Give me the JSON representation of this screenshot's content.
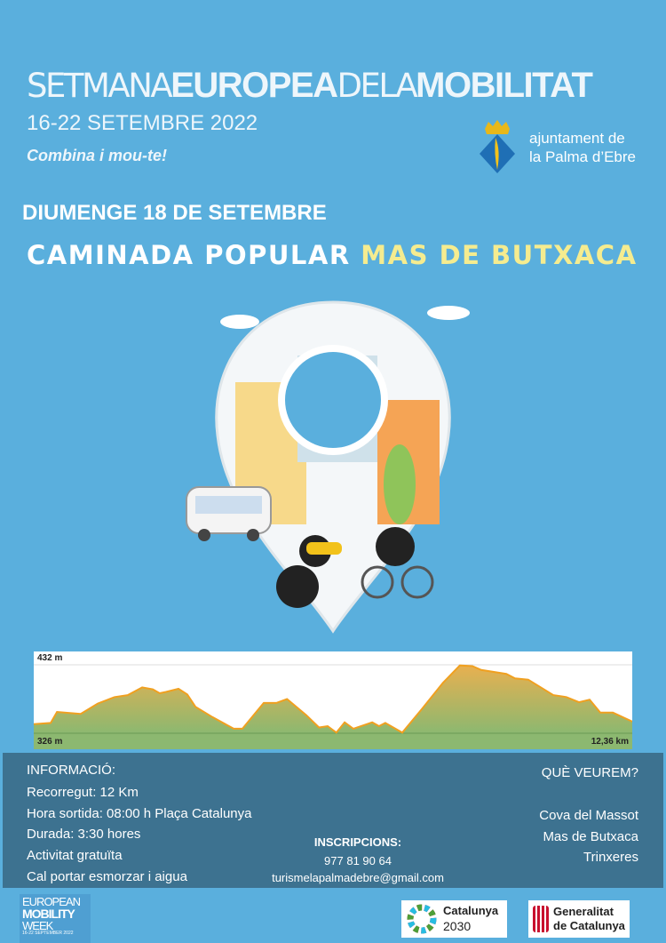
{
  "header": {
    "title_parts": [
      "SETMANA",
      "EUROPEA",
      "DELA",
      "MOBILITAT"
    ],
    "dates": "16-22 SETEMBRE 2022",
    "slogan": "Combina i mou-te!",
    "municipality": [
      "ajuntament de",
      "la Palma d’Ebre"
    ]
  },
  "event": {
    "day": "DIUMENGE 18 DE SETEMBRE",
    "name_white": "CAMINADA POPULAR",
    "name_yellow": "MAS DE BUTXACA"
  },
  "chart_data": {
    "type": "area",
    "title": "",
    "xlabel": "",
    "ylabel": "",
    "ymax_label": "432 m",
    "ymin_label": "326 m",
    "xmax_label": "12,36 km",
    "xlim": [
      0,
      12.36
    ],
    "ylim": [
      326,
      432
    ],
    "x": [
      0,
      0.35,
      0.48,
      0.97,
      1.32,
      1.67,
      1.94,
      2.24,
      2.46,
      2.6,
      2.73,
      2.99,
      3.17,
      3.34,
      3.69,
      4.13,
      4.31,
      4.75,
      5.01,
      5.23,
      5.63,
      5.89,
      6.07,
      6.25,
      6.42,
      6.6,
      6.99,
      7.13,
      7.26,
      7.61,
      8.01,
      8.45,
      8.8,
      9.06,
      9.24,
      9.76,
      9.94,
      10.21,
      10.73,
      11.0,
      11.26,
      11.48,
      11.7,
      11.96,
      12.36
    ],
    "y": [
      340,
      342,
      359,
      356,
      372,
      382,
      385,
      397,
      394,
      388,
      390,
      395,
      386,
      367,
      351,
      333,
      333,
      373,
      373,
      379,
      354,
      335,
      337,
      327,
      343,
      333,
      343,
      337,
      342,
      327,
      363,
      404,
      431,
      430,
      424,
      418,
      411,
      409,
      385,
      382,
      374,
      378,
      358,
      358,
      344
    ],
    "colors": {
      "line": "#f0a020",
      "fill_top": "#e8b050",
      "fill_bottom": "#8cb870"
    }
  },
  "info": {
    "heading": "INFORMACIÓ:",
    "lines": [
      "Recorregut: 12 Km",
      "Hora sortida: 08:00 h Plaça Catalunya",
      "Durada: 3:30 hores",
      "Activitat gratuïta",
      "Cal portar esmorzar i aigua"
    ],
    "registration_heading": "INSCRIPCIONS:",
    "phone": "977 81 90 64",
    "email": "turismelapalmadebre@gmail.com",
    "see_heading": "QUÈ VEUREM?",
    "see_items": [
      "Cova del Massot",
      "Mas de Butxaca",
      "Trinxeres"
    ]
  },
  "footer": {
    "emw": [
      "EUROPEAN",
      "MOBILITY",
      "WEEK",
      "16-22 SEPTEMBER 2022"
    ],
    "cat2030": [
      "Catalunya",
      "2030"
    ],
    "generalitat": [
      "Generalitat",
      "de Catalunya"
    ]
  }
}
